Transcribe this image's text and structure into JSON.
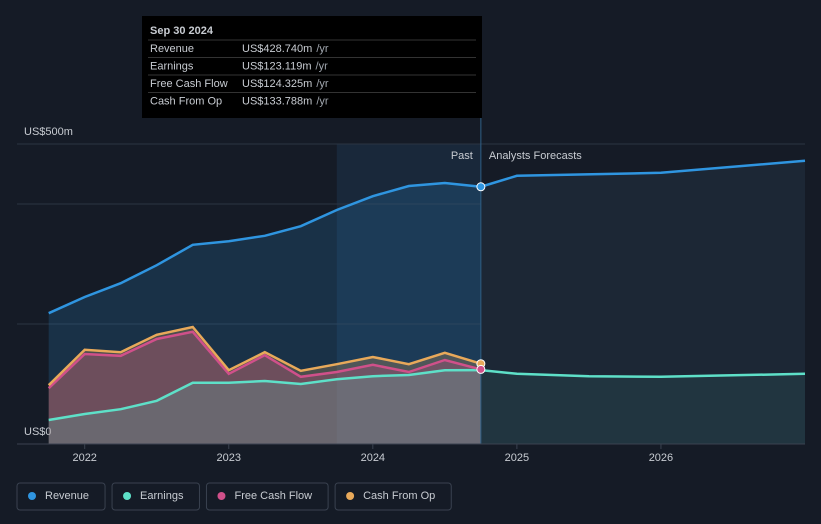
{
  "chart_data": {
    "type": "area",
    "x": [
      2021.75,
      2022,
      2022.25,
      2022.5,
      2022.75,
      2023,
      2023.25,
      2023.5,
      2023.75,
      2024,
      2024.25,
      2024.5,
      2024.75
    ],
    "series": [
      {
        "name": "Revenue",
        "color": "#2f95e0",
        "values": [
          218,
          245,
          268,
          298,
          332,
          338,
          347,
          363,
          390,
          413,
          430,
          435,
          428.74
        ],
        "forecast_x": [
          2024.75,
          2025,
          2026,
          2027
        ],
        "forecast_values": [
          428.74,
          447,
          452,
          472
        ]
      },
      {
        "name": "Earnings",
        "color": "#5ee0c8",
        "values": [
          40,
          50,
          58,
          72,
          102,
          102,
          105,
          100,
          108,
          113,
          115,
          123,
          123.119
        ],
        "forecast_x": [
          2024.75,
          2025,
          2025.5,
          2026,
          2027
        ],
        "forecast_values": [
          123.119,
          117,
          113,
          112,
          117
        ]
      },
      {
        "name": "Free Cash Flow",
        "color": "#d0508a",
        "values": [
          93,
          150,
          147,
          175,
          187,
          117,
          148,
          112,
          120,
          132,
          120,
          140,
          124.325
        ]
      },
      {
        "name": "Cash From Op",
        "color": "#e8a95a",
        "values": [
          98,
          157,
          153,
          182,
          195,
          123,
          153,
          122,
          133,
          145,
          133,
          152,
          133.788
        ]
      }
    ],
    "xlim": [
      2021.53,
      2027
    ],
    "xticks": [
      2022,
      2023,
      2024,
      2025,
      2026
    ],
    "ylim": [
      0,
      500
    ],
    "yticks": [
      {
        "value": 0,
        "label": "US$0"
      },
      {
        "value": 500,
        "label": "US$500m"
      }
    ],
    "grid": [
      200,
      400
    ],
    "past_label": "Past",
    "forecast_label": "Analysts Forecasts",
    "divider": 2024.75,
    "highlight_start": 2023.75,
    "tooltip": {
      "date": "Sep 30 2024",
      "unit": "/yr",
      "rows": [
        {
          "label": "Revenue",
          "value_label": "US$428.740m",
          "value": 428.74
        },
        {
          "label": "Earnings",
          "value_label": "US$123.119m",
          "value": 123.119
        },
        {
          "label": "Free Cash Flow",
          "value_label": "US$124.325m",
          "value": 124.325
        },
        {
          "label": "Cash From Op",
          "value_label": "US$133.788m",
          "value": 133.788
        }
      ]
    }
  }
}
